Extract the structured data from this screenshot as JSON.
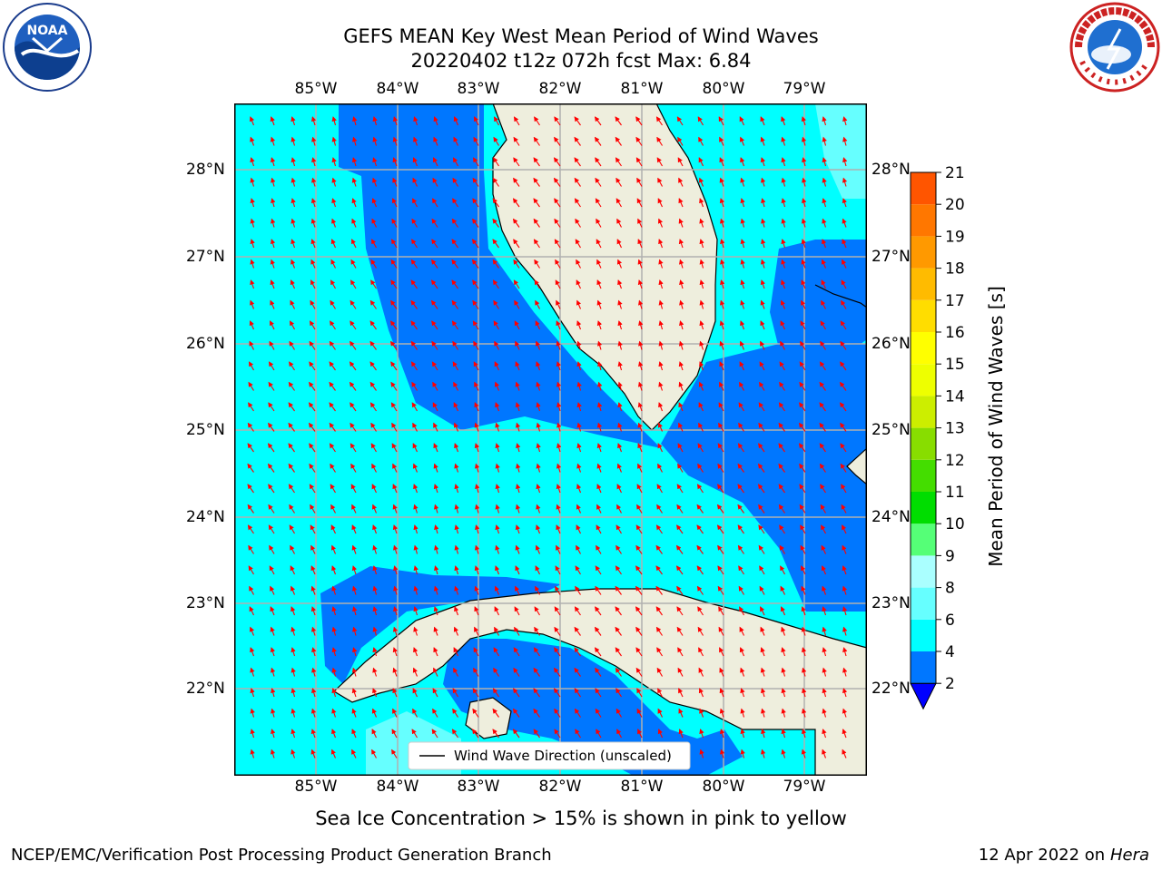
{
  "title_line1": "GEFS MEAN Key West Mean Period of Wind Waves",
  "title_line2": "20220402 t12z 072h fcst   Max: 6.84",
  "logos": {
    "left": "noaa-logo",
    "right": "nws-logo"
  },
  "map": {
    "lon_labels": [
      "85°W",
      "84°W",
      "83°W",
      "82°W",
      "81°W",
      "80°W",
      "79°W"
    ],
    "lat_labels_left": [
      "28°N",
      "27°N",
      "26°N",
      "25°N",
      "24°N",
      "23°N",
      "22°N"
    ],
    "lat_labels_right": [
      "28°N",
      "27°N",
      "26°N",
      "25°N",
      "24°N",
      "23°N",
      "22°N"
    ],
    "legend_label": "Wind Wave Direction (unscaled)",
    "colors": {
      "ocean_low": "#0077ff",
      "ocean_mid": "#00ffff",
      "ocean_high": "#66ffff",
      "land": "#eeeedd",
      "arrow": "#ff0000",
      "grid": "#b0b0b0"
    }
  },
  "colorbar": {
    "label": "Mean Period of Wind Waves [s]",
    "ticks": [
      "2",
      "4",
      "6",
      "8",
      "9",
      "10",
      "11",
      "12",
      "13",
      "14",
      "15",
      "16",
      "17",
      "18",
      "19",
      "20",
      "21"
    ],
    "colors": [
      "#0000ff",
      "#0077ff",
      "#00ffff",
      "#66ffff",
      "#aaffff",
      "#55ff77",
      "#00dd00",
      "#44dd00",
      "#88dd00",
      "#ccee00",
      "#eeff00",
      "#ffff00",
      "#ffdd00",
      "#ffbb00",
      "#ff9900",
      "#ff7700",
      "#ff5500",
      "#ff2200"
    ]
  },
  "note": "Sea Ice Concentration > 15% is shown in pink to yellow",
  "footer_left": "NCEP/EMC/Verification Post Processing Product Generation Branch",
  "footer_right_date": "12 Apr 2022 on ",
  "footer_right_host": "Hera"
}
